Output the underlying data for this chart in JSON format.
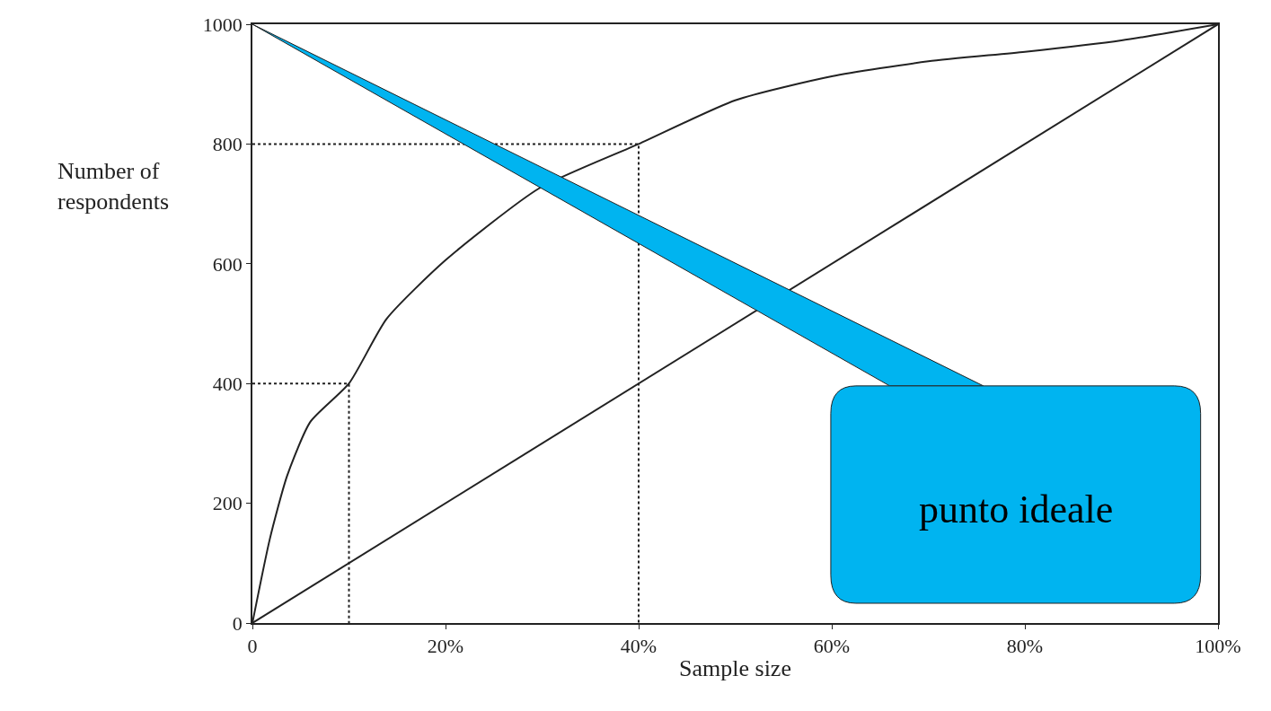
{
  "chart_data": {
    "type": "line",
    "xlabel": "Sample size",
    "ylabel": "Number of\nrespondents",
    "xlim": [
      0,
      100
    ],
    "ylim": [
      0,
      1000
    ],
    "xticks": [
      0,
      {
        "value": 20,
        "label": "20%"
      },
      {
        "value": 40,
        "label": "40%"
      },
      {
        "value": 60,
        "label": "60%"
      },
      {
        "value": 80,
        "label": "80%"
      },
      {
        "value": 100,
        "label": "100%"
      }
    ],
    "yticks": [
      0,
      200,
      400,
      600,
      800,
      1000
    ],
    "marker": "none",
    "series": [
      {
        "color": "#222222",
        "line_style": "solid",
        "x": [
          0,
          1.8,
          3.6,
          6,
          10,
          13.9,
          20,
          29.7,
          40,
          50,
          60,
          70,
          80,
          90,
          100
        ],
        "values": [
          0,
          140,
          246,
          336,
          400,
          508,
          606,
          726,
          800,
          873,
          913,
          938,
          954,
          973,
          1000
        ]
      },
      {
        "color": "#222222",
        "line_style": "solid",
        "x": [
          0,
          100
        ],
        "values": [
          0,
          1000
        ]
      },
      {
        "color": "#222222",
        "line_style": "dotted",
        "x": [
          0,
          40,
          40
        ],
        "values": [
          800,
          800,
          0
        ]
      },
      {
        "color": "#222222",
        "line_style": "dotted",
        "x": [
          0,
          10,
          10
        ],
        "values": [
          400,
          400,
          0
        ]
      }
    ],
    "annotations": [
      "punto ideale"
    ]
  }
}
